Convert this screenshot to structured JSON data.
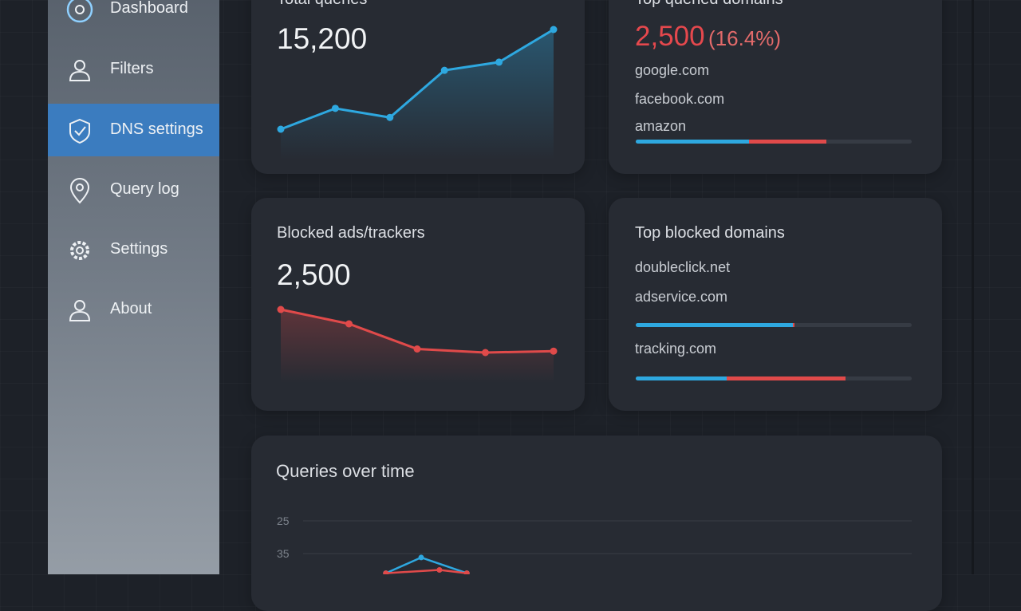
{
  "sidebar": {
    "items": [
      "Dashboard",
      "Filters",
      "DNS settings",
      "Query log",
      "Settings",
      "About"
    ],
    "active": 2
  },
  "total_queries": {
    "title": "Total queries",
    "value": "15,200",
    "sparkline": {
      "type": "line",
      "color": "#2ea8e0",
      "values": [
        2,
        4.3,
        3.3,
        8.5,
        9.4,
        13
      ]
    }
  },
  "top_queried": {
    "title": "Top queried domains",
    "count": "2,500",
    "share": "(16.4%)",
    "domains": [
      "google.com",
      "facebook.com",
      "amazon"
    ],
    "bar": [
      41,
      28
    ]
  },
  "blocked": {
    "title": "Blocked ads/trackers",
    "value": "2,500",
    "sparkline": {
      "type": "line",
      "color": "#e04a4a",
      "values": [
        9,
        7,
        3.5,
        3,
        3.2
      ]
    }
  },
  "top_blocked": {
    "title": "Top blocked domains",
    "groups": [
      {
        "domains": [
          "doubleclick.net",
          "adservice.com"
        ],
        "bar": [
          57,
          0.5
        ]
      },
      {
        "domains": [
          "tracking.com"
        ],
        "bar": [
          33,
          43
        ]
      }
    ]
  },
  "chart_data": {
    "type": "line",
    "title": "Queries over time",
    "xlim": [
      0,
      100
    ],
    "ylim": [
      20,
      41
    ],
    "y_inverted": true,
    "yticks": [
      25,
      35
    ],
    "grid": true,
    "series": [
      {
        "color": "#2ea8e0",
        "x": [
          13.6,
          19.4,
          26.9
        ],
        "values": [
          41,
          36.2,
          41
        ]
      },
      {
        "color": "#e04a4a",
        "x": [
          13.6,
          22.4,
          26.9
        ],
        "values": [
          41,
          40,
          41
        ]
      }
    ]
  }
}
